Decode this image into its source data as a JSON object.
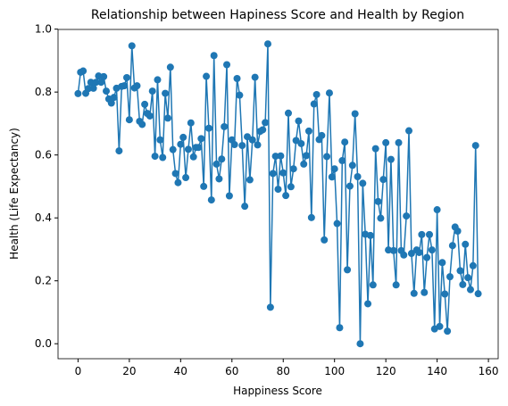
{
  "chart_data": {
    "type": "line",
    "title": "Relationship between Hapiness Score and Health by Region",
    "xlabel": "Happiness Score",
    "ylabel": "Health (Life Expectancy)",
    "color": "#1f77b4",
    "markers": true,
    "x": [
      0,
      1,
      2,
      3,
      4,
      5,
      6,
      7,
      8,
      9,
      10,
      11,
      12,
      13,
      14,
      15,
      16,
      17,
      18,
      19,
      20,
      21,
      22,
      23,
      24,
      25,
      26,
      27,
      28,
      29,
      30,
      31,
      32,
      33,
      34,
      35,
      36,
      37,
      38,
      39,
      40,
      41,
      42,
      43,
      44,
      45,
      46,
      47,
      48,
      49,
      50,
      51,
      52,
      53,
      54,
      55,
      56,
      57,
      58,
      59,
      60,
      61,
      62,
      63,
      64,
      65,
      66,
      67,
      68,
      69,
      70,
      71,
      72,
      73,
      74,
      75,
      76,
      77,
      78,
      79,
      80,
      81,
      82,
      83,
      84,
      85,
      86,
      87,
      88,
      89,
      90,
      91,
      92,
      93,
      94,
      95,
      96,
      97,
      98,
      99,
      100,
      101,
      102,
      103,
      104,
      105,
      106,
      107,
      108,
      109,
      110,
      111,
      112,
      113,
      114,
      115,
      116,
      117,
      118,
      119,
      120,
      121,
      122,
      123,
      124,
      125,
      126,
      127,
      128,
      129,
      130,
      131,
      132,
      133,
      134,
      135,
      136,
      137,
      138,
      139,
      140,
      141,
      142,
      143,
      144,
      145,
      146,
      147,
      148,
      149,
      150,
      151,
      152,
      153,
      154,
      155,
      156
    ],
    "values": [
      0.795,
      0.863,
      0.867,
      0.796,
      0.811,
      0.831,
      0.812,
      0.831,
      0.851,
      0.831,
      0.849,
      0.803,
      0.778,
      0.765,
      0.783,
      0.812,
      0.613,
      0.818,
      0.82,
      0.846,
      0.712,
      0.947,
      0.813,
      0.82,
      0.707,
      0.697,
      0.761,
      0.732,
      0.724,
      0.803,
      0.596,
      0.839,
      0.648,
      0.592,
      0.796,
      0.717,
      0.879,
      0.617,
      0.541,
      0.512,
      0.634,
      0.656,
      0.528,
      0.618,
      0.702,
      0.594,
      0.624,
      0.624,
      0.652,
      0.5,
      0.85,
      0.685,
      0.457,
      0.916,
      0.571,
      0.524,
      0.587,
      0.69,
      0.887,
      0.47,
      0.648,
      0.633,
      0.843,
      0.79,
      0.63,
      0.437,
      0.658,
      0.521,
      0.648,
      0.847,
      0.632,
      0.675,
      0.68,
      0.703,
      0.953,
      0.116,
      0.541,
      0.596,
      0.491,
      0.597,
      0.543,
      0.471,
      0.733,
      0.499,
      0.556,
      0.646,
      0.708,
      0.636,
      0.571,
      0.598,
      0.676,
      0.401,
      0.762,
      0.792,
      0.649,
      0.662,
      0.33,
      0.595,
      0.797,
      0.53,
      0.556,
      0.382,
      0.051,
      0.582,
      0.641,
      0.235,
      0.501,
      0.567,
      0.731,
      0.531,
      0.0,
      0.51,
      0.348,
      0.127,
      0.344,
      0.187,
      0.62,
      0.452,
      0.399,
      0.522,
      0.639,
      0.298,
      0.586,
      0.296,
      0.187,
      0.639,
      0.296,
      0.282,
      0.406,
      0.677,
      0.287,
      0.16,
      0.298,
      0.29,
      0.347,
      0.163,
      0.274,
      0.347,
      0.298,
      0.047,
      0.426,
      0.055,
      0.258,
      0.158,
      0.04,
      0.213,
      0.312,
      0.371,
      0.358,
      0.232,
      0.188,
      0.316,
      0.21,
      0.172,
      0.248,
      0.63,
      0.159
    ],
    "xlim": [
      -7.8,
      163.8
    ],
    "xticks": [
      0,
      20,
      40,
      60,
      80,
      100,
      120,
      140,
      160
    ],
    "ylim": [
      -0.0476,
      0.999
    ],
    "yticks": [
      {
        "value": 0,
        "label": "0.0"
      },
      0.2,
      0.4,
      0.6,
      0.8,
      {
        "value": 1,
        "label": "1.0"
      }
    ],
    "grid": false
  }
}
